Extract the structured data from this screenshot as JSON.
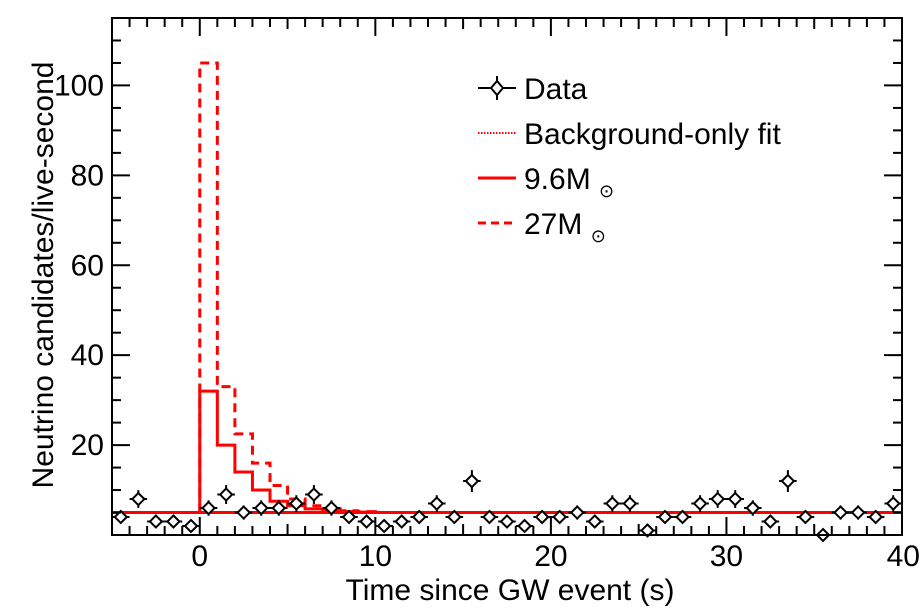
{
  "chart_data": {
    "type": "scatter",
    "xlabel": "Time since GW event (s)",
    "ylabel": "Neutrino candidates/live-second",
    "xlim": [
      -5,
      40
    ],
    "ylim": [
      0,
      115
    ],
    "xticks": [
      0,
      10,
      20,
      30,
      40
    ],
    "yticks": [
      20,
      40,
      60,
      80,
      100
    ],
    "grid": false,
    "legend_position": "top-right",
    "legend": {
      "data": "Data",
      "background": "Background-only fit",
      "model_a_main": "9.6M",
      "model_b_main": "27M",
      "solar_symbol": "⊙"
    },
    "colors": {
      "data": "#000000",
      "model": "#ff0000"
    },
    "bin_width": 1,
    "background_level": 5,
    "data_points": [
      {
        "x": -4.5,
        "y": 4
      },
      {
        "x": -3.5,
        "y": 8
      },
      {
        "x": -2.5,
        "y": 3
      },
      {
        "x": -1.5,
        "y": 3
      },
      {
        "x": -0.5,
        "y": 2
      },
      {
        "x": 0.5,
        "y": 6
      },
      {
        "x": 1.5,
        "y": 9
      },
      {
        "x": 2.5,
        "y": 5
      },
      {
        "x": 3.5,
        "y": 6
      },
      {
        "x": 4.5,
        "y": 6
      },
      {
        "x": 5.5,
        "y": 7
      },
      {
        "x": 6.5,
        "y": 9
      },
      {
        "x": 7.5,
        "y": 6
      },
      {
        "x": 8.5,
        "y": 4
      },
      {
        "x": 9.5,
        "y": 3
      },
      {
        "x": 10.5,
        "y": 2
      },
      {
        "x": 11.5,
        "y": 3
      },
      {
        "x": 12.5,
        "y": 4
      },
      {
        "x": 13.5,
        "y": 7
      },
      {
        "x": 14.5,
        "y": 4
      },
      {
        "x": 15.5,
        "y": 12
      },
      {
        "x": 16.5,
        "y": 4
      },
      {
        "x": 17.5,
        "y": 3
      },
      {
        "x": 18.5,
        "y": 2
      },
      {
        "x": 19.5,
        "y": 4
      },
      {
        "x": 20.5,
        "y": 4
      },
      {
        "x": 21.5,
        "y": 5
      },
      {
        "x": 22.5,
        "y": 3
      },
      {
        "x": 23.5,
        "y": 7
      },
      {
        "x": 24.5,
        "y": 7
      },
      {
        "x": 25.5,
        "y": 1
      },
      {
        "x": 26.5,
        "y": 4
      },
      {
        "x": 27.5,
        "y": 4
      },
      {
        "x": 28.5,
        "y": 7
      },
      {
        "x": 29.5,
        "y": 8
      },
      {
        "x": 30.5,
        "y": 8
      },
      {
        "x": 31.5,
        "y": 6
      },
      {
        "x": 32.5,
        "y": 3
      },
      {
        "x": 33.5,
        "y": 12
      },
      {
        "x": 34.5,
        "y": 4
      },
      {
        "x": 35.5,
        "y": 0
      },
      {
        "x": 36.5,
        "y": 5
      },
      {
        "x": 37.5,
        "y": 5
      },
      {
        "x": 38.5,
        "y": 4
      },
      {
        "x": 39.5,
        "y": 7
      }
    ],
    "model_9_6": [
      {
        "x0": 0,
        "x1": 1,
        "y": 32
      },
      {
        "x0": 1,
        "x1": 2,
        "y": 20
      },
      {
        "x0": 2,
        "x1": 3,
        "y": 14
      },
      {
        "x0": 3,
        "x1": 4,
        "y": 10
      },
      {
        "x0": 4,
        "x1": 5,
        "y": 7.5
      },
      {
        "x0": 5,
        "x1": 6,
        "y": 6.5
      },
      {
        "x0": 6,
        "x1": 7,
        "y": 5.8
      },
      {
        "x0": 7,
        "x1": 8,
        "y": 5.4
      },
      {
        "x0": 8,
        "x1": 9,
        "y": 5.2
      },
      {
        "x0": 9,
        "x1": 10,
        "y": 5.1
      }
    ],
    "model_27": [
      {
        "x0": 0,
        "x1": 1,
        "y": 105
      },
      {
        "x0": 1,
        "x1": 2,
        "y": 33
      },
      {
        "x0": 2,
        "x1": 3,
        "y": 22.5
      },
      {
        "x0": 3,
        "x1": 4,
        "y": 16
      },
      {
        "x0": 4,
        "x1": 5,
        "y": 11
      },
      {
        "x0": 5,
        "x1": 6,
        "y": 8
      },
      {
        "x0": 6,
        "x1": 7,
        "y": 6.5
      },
      {
        "x0": 7,
        "x1": 8,
        "y": 5.8
      },
      {
        "x0": 8,
        "x1": 9,
        "y": 5.4
      },
      {
        "x0": 9,
        "x1": 10,
        "y": 5.2
      }
    ]
  }
}
